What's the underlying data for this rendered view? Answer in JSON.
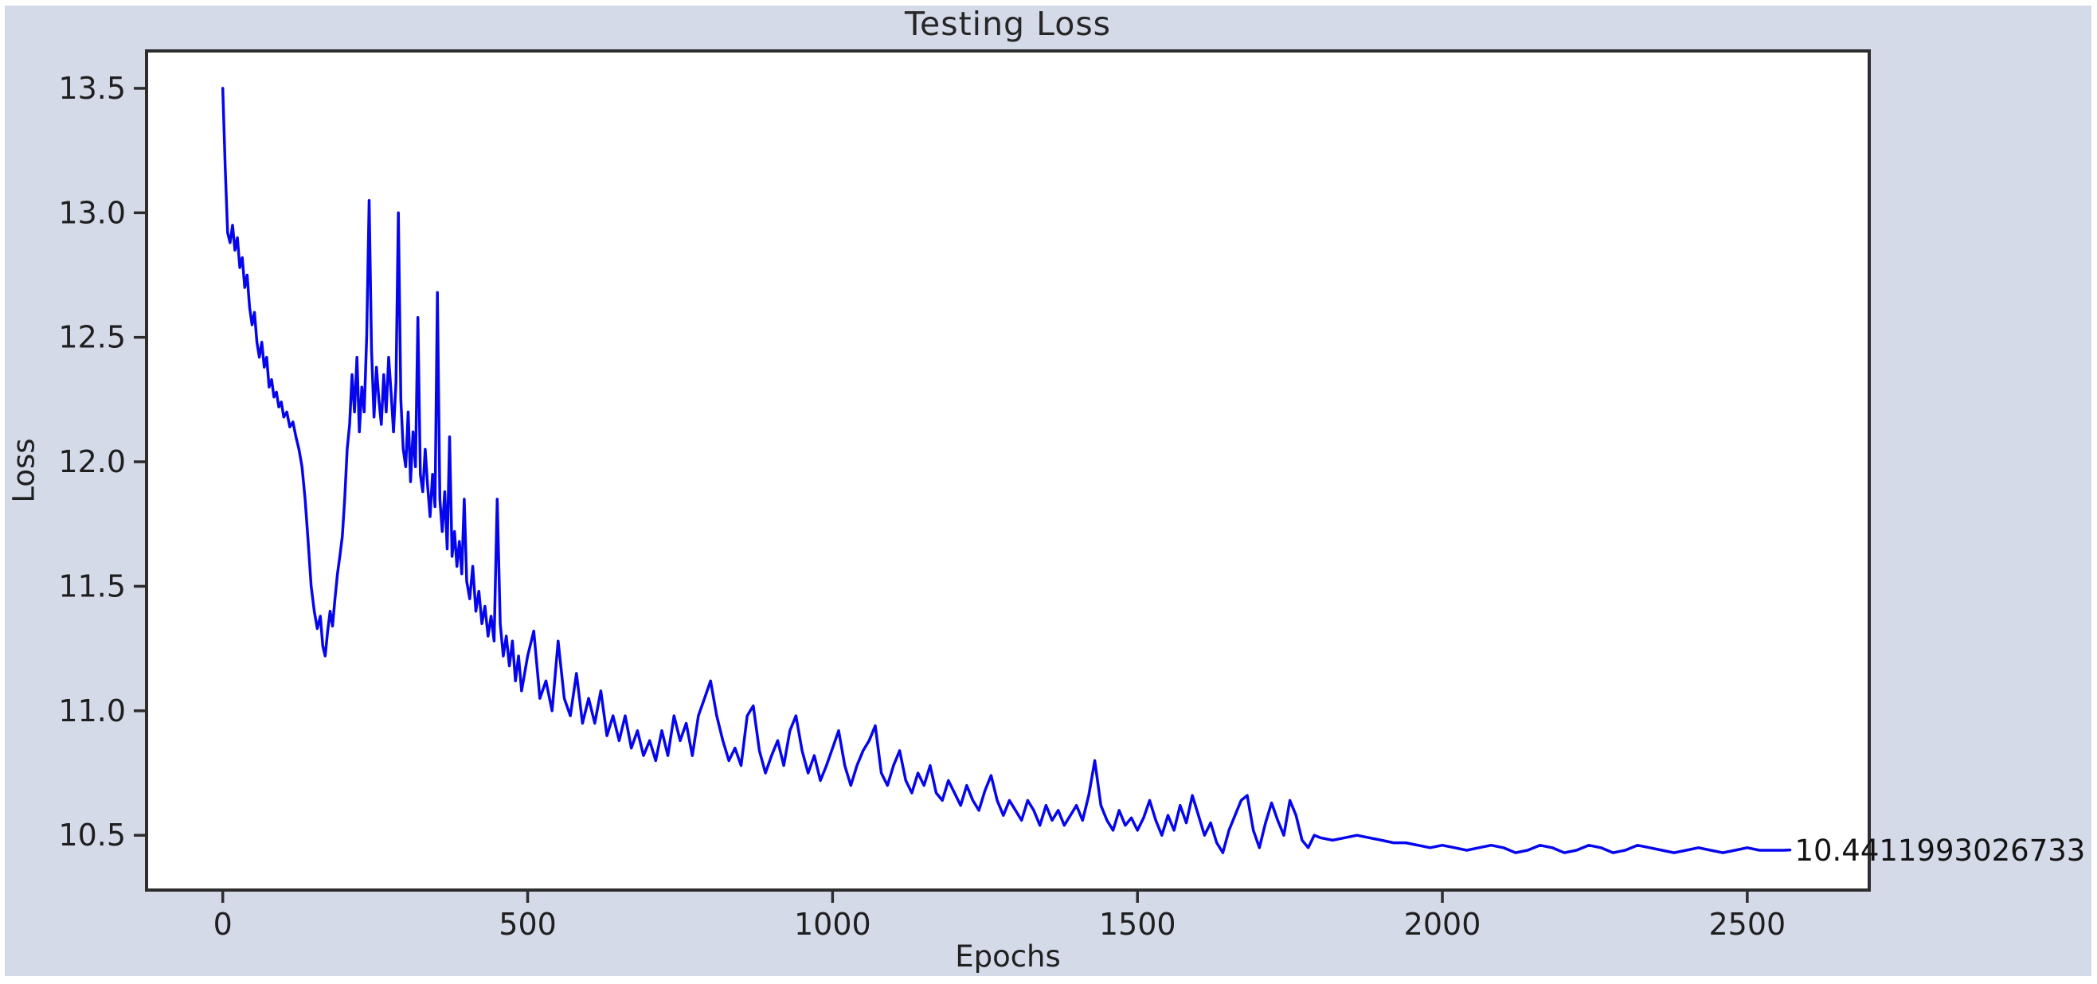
{
  "figure": {
    "background_color": "#d5dae9",
    "plot_background_color": "#ffffff",
    "spine_color": "#2d2d2d",
    "tick_color": "#2d2d2d",
    "text_color": "#1f1f1f"
  },
  "annotation": {
    "text": "10.4411993026733"
  },
  "chart_data": {
    "type": "line",
    "title": "Testing Loss",
    "xlabel": "Epochs",
    "ylabel": "Loss",
    "line_color": "#0505ee",
    "grid": false,
    "legend_position": "none",
    "xlim": [
      -125,
      2700
    ],
    "ylim": [
      10.28,
      13.65
    ],
    "x_ticks": [
      0,
      500,
      1000,
      1500,
      2000,
      2500
    ],
    "y_ticks": [
      10.5,
      11.0,
      11.5,
      12.0,
      12.5,
      13.0,
      13.5
    ],
    "final_value": 10.4411993026733,
    "final_value_label": "10.4411993026733",
    "series": [
      {
        "name": "Testing Loss",
        "points": [
          [
            0,
            13.5
          ],
          [
            4,
            13.18
          ],
          [
            8,
            12.92
          ],
          [
            12,
            12.88
          ],
          [
            16,
            12.95
          ],
          [
            20,
            12.85
          ],
          [
            24,
            12.9
          ],
          [
            28,
            12.78
          ],
          [
            32,
            12.82
          ],
          [
            36,
            12.7
          ],
          [
            40,
            12.75
          ],
          [
            44,
            12.62
          ],
          [
            48,
            12.55
          ],
          [
            52,
            12.6
          ],
          [
            56,
            12.48
          ],
          [
            60,
            12.42
          ],
          [
            64,
            12.48
          ],
          [
            68,
            12.38
          ],
          [
            72,
            12.42
          ],
          [
            76,
            12.3
          ],
          [
            80,
            12.33
          ],
          [
            84,
            12.26
          ],
          [
            88,
            12.28
          ],
          [
            92,
            12.22
          ],
          [
            96,
            12.24
          ],
          [
            100,
            12.18
          ],
          [
            105,
            12.2
          ],
          [
            110,
            12.14
          ],
          [
            115,
            12.16
          ],
          [
            120,
            12.1
          ],
          [
            125,
            12.05
          ],
          [
            130,
            11.98
          ],
          [
            135,
            11.85
          ],
          [
            140,
            11.68
          ],
          [
            145,
            11.5
          ],
          [
            150,
            11.4
          ],
          [
            155,
            11.33
          ],
          [
            160,
            11.38
          ],
          [
            164,
            11.26
          ],
          [
            168,
            11.22
          ],
          [
            172,
            11.32
          ],
          [
            176,
            11.4
          ],
          [
            180,
            11.34
          ],
          [
            184,
            11.45
          ],
          [
            188,
            11.55
          ],
          [
            192,
            11.62
          ],
          [
            196,
            11.7
          ],
          [
            200,
            11.85
          ],
          [
            204,
            12.05
          ],
          [
            208,
            12.15
          ],
          [
            212,
            12.35
          ],
          [
            216,
            12.2
          ],
          [
            220,
            12.42
          ],
          [
            224,
            12.12
          ],
          [
            228,
            12.3
          ],
          [
            232,
            12.2
          ],
          [
            236,
            12.5
          ],
          [
            240,
            13.05
          ],
          [
            244,
            12.45
          ],
          [
            248,
            12.18
          ],
          [
            252,
            12.38
          ],
          [
            256,
            12.25
          ],
          [
            260,
            12.15
          ],
          [
            264,
            12.35
          ],
          [
            268,
            12.2
          ],
          [
            272,
            12.42
          ],
          [
            276,
            12.28
          ],
          [
            280,
            12.12
          ],
          [
            284,
            12.32
          ],
          [
            288,
            13.0
          ],
          [
            292,
            12.25
          ],
          [
            296,
            12.05
          ],
          [
            300,
            11.98
          ],
          [
            304,
            12.2
          ],
          [
            308,
            11.92
          ],
          [
            312,
            12.12
          ],
          [
            316,
            11.98
          ],
          [
            320,
            12.58
          ],
          [
            324,
            11.95
          ],
          [
            328,
            11.88
          ],
          [
            332,
            12.05
          ],
          [
            336,
            11.9
          ],
          [
            340,
            11.78
          ],
          [
            344,
            11.95
          ],
          [
            348,
            11.82
          ],
          [
            352,
            12.68
          ],
          [
            356,
            11.85
          ],
          [
            360,
            11.72
          ],
          [
            364,
            11.88
          ],
          [
            368,
            11.65
          ],
          [
            372,
            12.1
          ],
          [
            376,
            11.62
          ],
          [
            380,
            11.72
          ],
          [
            384,
            11.58
          ],
          [
            388,
            11.68
          ],
          [
            392,
            11.55
          ],
          [
            396,
            11.85
          ],
          [
            400,
            11.52
          ],
          [
            405,
            11.45
          ],
          [
            410,
            11.58
          ],
          [
            415,
            11.4
          ],
          [
            420,
            11.48
          ],
          [
            425,
            11.35
          ],
          [
            430,
            11.42
          ],
          [
            435,
            11.3
          ],
          [
            440,
            11.38
          ],
          [
            445,
            11.28
          ],
          [
            450,
            11.85
          ],
          [
            455,
            11.35
          ],
          [
            460,
            11.22
          ],
          [
            465,
            11.3
          ],
          [
            470,
            11.18
          ],
          [
            475,
            11.28
          ],
          [
            480,
            11.12
          ],
          [
            485,
            11.22
          ],
          [
            490,
            11.08
          ],
          [
            495,
            11.15
          ],
          [
            500,
            11.22
          ],
          [
            510,
            11.32
          ],
          [
            520,
            11.05
          ],
          [
            530,
            11.12
          ],
          [
            540,
            11.0
          ],
          [
            550,
            11.28
          ],
          [
            560,
            11.05
          ],
          [
            570,
            10.98
          ],
          [
            580,
            11.15
          ],
          [
            590,
            10.95
          ],
          [
            600,
            11.05
          ],
          [
            610,
            10.95
          ],
          [
            620,
            11.08
          ],
          [
            630,
            10.9
          ],
          [
            640,
            10.98
          ],
          [
            650,
            10.88
          ],
          [
            660,
            10.98
          ],
          [
            670,
            10.85
          ],
          [
            680,
            10.92
          ],
          [
            690,
            10.82
          ],
          [
            700,
            10.88
          ],
          [
            710,
            10.8
          ],
          [
            720,
            10.92
          ],
          [
            730,
            10.82
          ],
          [
            740,
            10.98
          ],
          [
            750,
            10.88
          ],
          [
            760,
            10.95
          ],
          [
            770,
            10.82
          ],
          [
            780,
            10.98
          ],
          [
            790,
            11.05
          ],
          [
            800,
            11.12
          ],
          [
            810,
            10.98
          ],
          [
            820,
            10.88
          ],
          [
            830,
            10.8
          ],
          [
            840,
            10.85
          ],
          [
            850,
            10.78
          ],
          [
            860,
            10.98
          ],
          [
            870,
            11.02
          ],
          [
            880,
            10.84
          ],
          [
            890,
            10.75
          ],
          [
            900,
            10.82
          ],
          [
            910,
            10.88
          ],
          [
            920,
            10.78
          ],
          [
            930,
            10.92
          ],
          [
            940,
            10.98
          ],
          [
            950,
            10.84
          ],
          [
            960,
            10.75
          ],
          [
            970,
            10.82
          ],
          [
            980,
            10.72
          ],
          [
            990,
            10.78
          ],
          [
            1000,
            10.85
          ],
          [
            1010,
            10.92
          ],
          [
            1020,
            10.78
          ],
          [
            1030,
            10.7
          ],
          [
            1040,
            10.78
          ],
          [
            1050,
            10.84
          ],
          [
            1060,
            10.88
          ],
          [
            1070,
            10.94
          ],
          [
            1080,
            10.75
          ],
          [
            1090,
            10.7
          ],
          [
            1100,
            10.78
          ],
          [
            1110,
            10.84
          ],
          [
            1120,
            10.72
          ],
          [
            1130,
            10.67
          ],
          [
            1140,
            10.75
          ],
          [
            1150,
            10.7
          ],
          [
            1160,
            10.78
          ],
          [
            1170,
            10.67
          ],
          [
            1180,
            10.64
          ],
          [
            1190,
            10.72
          ],
          [
            1200,
            10.67
          ],
          [
            1210,
            10.62
          ],
          [
            1220,
            10.7
          ],
          [
            1230,
            10.64
          ],
          [
            1240,
            10.6
          ],
          [
            1250,
            10.68
          ],
          [
            1260,
            10.74
          ],
          [
            1270,
            10.64
          ],
          [
            1280,
            10.58
          ],
          [
            1290,
            10.64
          ],
          [
            1300,
            10.6
          ],
          [
            1310,
            10.56
          ],
          [
            1320,
            10.64
          ],
          [
            1330,
            10.6
          ],
          [
            1340,
            10.54
          ],
          [
            1350,
            10.62
          ],
          [
            1360,
            10.56
          ],
          [
            1370,
            10.6
          ],
          [
            1380,
            10.54
          ],
          [
            1390,
            10.58
          ],
          [
            1400,
            10.62
          ],
          [
            1410,
            10.56
          ],
          [
            1420,
            10.66
          ],
          [
            1430,
            10.8
          ],
          [
            1440,
            10.62
          ],
          [
            1450,
            10.56
          ],
          [
            1460,
            10.52
          ],
          [
            1470,
            10.6
          ],
          [
            1480,
            10.54
          ],
          [
            1490,
            10.57
          ],
          [
            1500,
            10.52
          ],
          [
            1510,
            10.57
          ],
          [
            1520,
            10.64
          ],
          [
            1530,
            10.56
          ],
          [
            1540,
            10.5
          ],
          [
            1550,
            10.58
          ],
          [
            1560,
            10.52
          ],
          [
            1570,
            10.62
          ],
          [
            1580,
            10.55
          ],
          [
            1590,
            10.66
          ],
          [
            1600,
            10.58
          ],
          [
            1610,
            10.5
          ],
          [
            1620,
            10.55
          ],
          [
            1630,
            10.47
          ],
          [
            1640,
            10.43
          ],
          [
            1650,
            10.52
          ],
          [
            1660,
            10.58
          ],
          [
            1670,
            10.64
          ],
          [
            1680,
            10.66
          ],
          [
            1690,
            10.52
          ],
          [
            1700,
            10.45
          ],
          [
            1710,
            10.55
          ],
          [
            1720,
            10.63
          ],
          [
            1730,
            10.56
          ],
          [
            1740,
            10.5
          ],
          [
            1750,
            10.64
          ],
          [
            1760,
            10.58
          ],
          [
            1770,
            10.48
          ],
          [
            1780,
            10.45
          ],
          [
            1790,
            10.5
          ],
          [
            1800,
            10.49
          ],
          [
            1820,
            10.48
          ],
          [
            1840,
            10.49
          ],
          [
            1860,
            10.5
          ],
          [
            1880,
            10.49
          ],
          [
            1900,
            10.48
          ],
          [
            1920,
            10.47
          ],
          [
            1940,
            10.47
          ],
          [
            1960,
            10.46
          ],
          [
            1980,
            10.45
          ],
          [
            2000,
            10.46
          ],
          [
            2020,
            10.45
          ],
          [
            2040,
            10.44
          ],
          [
            2060,
            10.45
          ],
          [
            2080,
            10.46
          ],
          [
            2100,
            10.45
          ],
          [
            2120,
            10.43
          ],
          [
            2140,
            10.44
          ],
          [
            2160,
            10.46
          ],
          [
            2180,
            10.45
          ],
          [
            2200,
            10.43
          ],
          [
            2220,
            10.44
          ],
          [
            2240,
            10.46
          ],
          [
            2260,
            10.45
          ],
          [
            2280,
            10.43
          ],
          [
            2300,
            10.44
          ],
          [
            2320,
            10.46
          ],
          [
            2340,
            10.45
          ],
          [
            2360,
            10.44
          ],
          [
            2380,
            10.43
          ],
          [
            2400,
            10.44
          ],
          [
            2420,
            10.45
          ],
          [
            2440,
            10.44
          ],
          [
            2460,
            10.43
          ],
          [
            2480,
            10.44
          ],
          [
            2500,
            10.45
          ],
          [
            2520,
            10.44
          ],
          [
            2540,
            10.44
          ],
          [
            2560,
            10.44
          ],
          [
            2570,
            10.4411993026733
          ]
        ]
      }
    ]
  }
}
